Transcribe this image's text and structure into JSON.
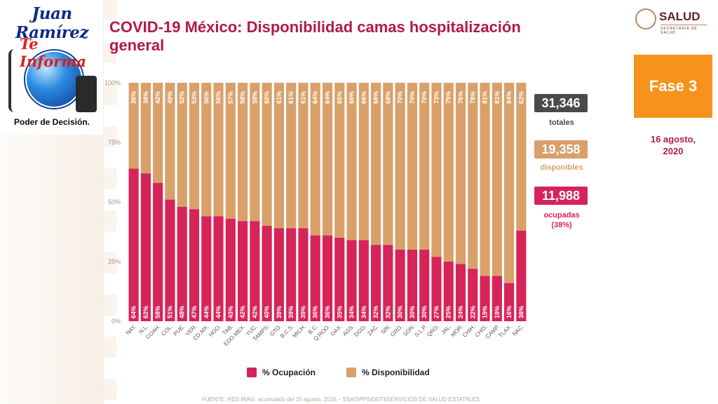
{
  "logo": {
    "name": "Juan Ramírez",
    "sub": "Te Informa",
    "tagline": "Poder de Decisión."
  },
  "title": "COVID-19 México: Disponibilidad camas hospitalización general",
  "brand": {
    "name": "SALUD",
    "sub": "SECRETARÍA DE SALUD"
  },
  "phase": "Fase 3",
  "date": "16 agosto,\n2020",
  "stats": {
    "total_value": "31,346",
    "total_label": "totales",
    "available_value": "19,358",
    "available_label": "disponibles",
    "occupied_value": "11,988",
    "occupied_label": "ocupadas\n(38%)"
  },
  "colors": {
    "occupied": "#d6245a",
    "available": "#d9a06a",
    "title": "#b11a4a",
    "phase": "#f7931d",
    "dark": "#4a4a4a"
  },
  "chart_data": {
    "type": "bar",
    "stacked": true,
    "orientation": "vertical",
    "categories": [
      "NAY.",
      "N.L.",
      "COAH.",
      "COL.",
      "PUE.",
      "VER.",
      "CD.MX.",
      "HGO.",
      "TAB.",
      "EDO.MEX.",
      "YUC.",
      "TAMPS.",
      "GTO.",
      "B.C.S.",
      "MICH.",
      "B.C.",
      "Q.ROO.",
      "OAX.",
      "AGS.",
      "DGO.",
      "ZAC.",
      "SIN.",
      "GRO.",
      "SON.",
      "S.L.P.",
      "QRO.",
      "JAL.",
      "MOR.",
      "CHIH.",
      "CHIS.",
      "CAMP.",
      "TLAX.",
      "NAC."
    ],
    "series": [
      {
        "name": "% Ocupación",
        "values": [
          64,
          62,
          58,
          51,
          48,
          47,
          44,
          44,
          43,
          42,
          42,
          40,
          39,
          39,
          39,
          36,
          36,
          35,
          34,
          34,
          32,
          32,
          30,
          30,
          30,
          27,
          25,
          24,
          22,
          19,
          19,
          16,
          38
        ]
      },
      {
        "name": "% Disponibilidad",
        "values": [
          36,
          38,
          42,
          49,
          52,
          53,
          56,
          56,
          57,
          58,
          58,
          60,
          61,
          61,
          61,
          64,
          64,
          65,
          66,
          66,
          68,
          68,
          70,
          70,
          70,
          73,
          75,
          76,
          78,
          81,
          81,
          84,
          62
        ]
      }
    ],
    "y_ticks": [
      "0%",
      "25%",
      "50%",
      "75%",
      "100%"
    ],
    "ylim": [
      0,
      100
    ]
  },
  "legend": {
    "occupied": "% Ocupación",
    "available": "% Disponibilidad"
  },
  "source": "FUENTE: RED IRAG, acumulado del 15 agosto, 2020. -  SSA/SPPS/DGTI/SERVICIOS DE SALUD ESTATALES"
}
